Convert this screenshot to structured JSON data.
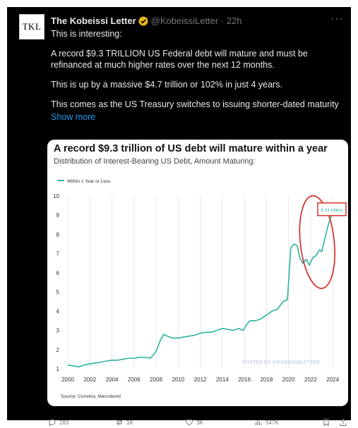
{
  "tweet": {
    "avatar_text": "TKL",
    "author": "The Kobeissi Letter",
    "handle": "@KobeissiLetter",
    "separator": "·",
    "time": "22h",
    "more_glyph": "···",
    "paragraphs": [
      "This is interesting:",
      "A record $9.3 TRILLION US Federal debt will mature and must be refinanced at much higher rates over the next 12 months.",
      "This is up by a massive $4.7 trillion or 102% in just 4 years.",
      "This comes as the US Treasury switches to issuing shorter-dated maturity"
    ],
    "show_more": "Show more",
    "verified_color": "#e2b719",
    "link_color": "#1d9bf0"
  },
  "actions": {
    "replies": "283",
    "reposts": "1K",
    "likes": "3K",
    "views": "547K",
    "icons": [
      "reply-icon",
      "repost-icon",
      "like-icon",
      "views-icon",
      "bookmark-icon",
      "share-icon"
    ]
  },
  "chart_data": {
    "type": "line",
    "title": "A record $9.3 trillion of US debt will mature within a year",
    "subtitle": "Distribution of Interest-Bearing US Debt, Amount Maturing:",
    "xlabel": "",
    "ylabel": "",
    "xlim": [
      2000,
      2024.5
    ],
    "ylim": [
      1,
      10
    ],
    "grid": "vertical",
    "legend_position": "top-left",
    "line_color": "#2bb3a1",
    "highlight_color": "#d8231f",
    "x_ticks": [
      "2000",
      "2002",
      "2004",
      "2006",
      "2008",
      "2010",
      "2012",
      "2014",
      "2016",
      "2018",
      "2020",
      "2022",
      "2024"
    ],
    "y_ticks": [
      "1",
      "2",
      "3",
      "4",
      "5",
      "6",
      "7",
      "8",
      "9",
      "10"
    ],
    "series": [
      {
        "name": "Within 1 Year or Less",
        "x": [
          2000.0,
          2000.5,
          2001.0,
          2001.5,
          2002.0,
          2002.5,
          2003.0,
          2003.5,
          2004.0,
          2004.5,
          2005.0,
          2005.5,
          2006.0,
          2006.5,
          2007.0,
          2007.5,
          2008.0,
          2008.4,
          2008.7,
          2009.0,
          2009.5,
          2010.0,
          2010.5,
          2011.0,
          2011.5,
          2012.0,
          2012.5,
          2013.0,
          2013.5,
          2014.0,
          2014.5,
          2015.0,
          2015.5,
          2015.9,
          2016.2,
          2016.5,
          2017.0,
          2017.5,
          2018.0,
          2018.5,
          2019.0,
          2019.5,
          2019.9,
          2020.2,
          2020.5,
          2020.8,
          2021.0,
          2021.3,
          2021.6,
          2021.9,
          2022.2,
          2022.5,
          2022.8,
          2023.0,
          2023.3,
          2023.6,
          2023.9,
          2024.2
        ],
        "values": [
          1.2,
          1.15,
          1.1,
          1.2,
          1.25,
          1.3,
          1.35,
          1.4,
          1.45,
          1.45,
          1.5,
          1.55,
          1.55,
          1.6,
          1.6,
          1.55,
          1.9,
          2.5,
          2.8,
          2.7,
          2.6,
          2.6,
          2.65,
          2.7,
          2.75,
          2.85,
          2.9,
          2.9,
          3.0,
          3.1,
          3.05,
          3.0,
          3.1,
          3.0,
          3.3,
          3.5,
          3.5,
          3.6,
          3.8,
          4.0,
          4.1,
          4.5,
          4.6,
          7.3,
          7.5,
          7.4,
          6.8,
          6.5,
          6.7,
          6.4,
          6.8,
          6.9,
          7.2,
          7.1,
          7.8,
          8.5,
          9.0,
          9.3
        ]
      }
    ],
    "annotations": [
      {
        "text": "9.31 trillion",
        "x": 2024.2,
        "y": 9.31
      },
      {
        "text": "POSTED BY @KOBEISSILETTER"
      }
    ],
    "source": "Source: Convera, Macrobond"
  }
}
